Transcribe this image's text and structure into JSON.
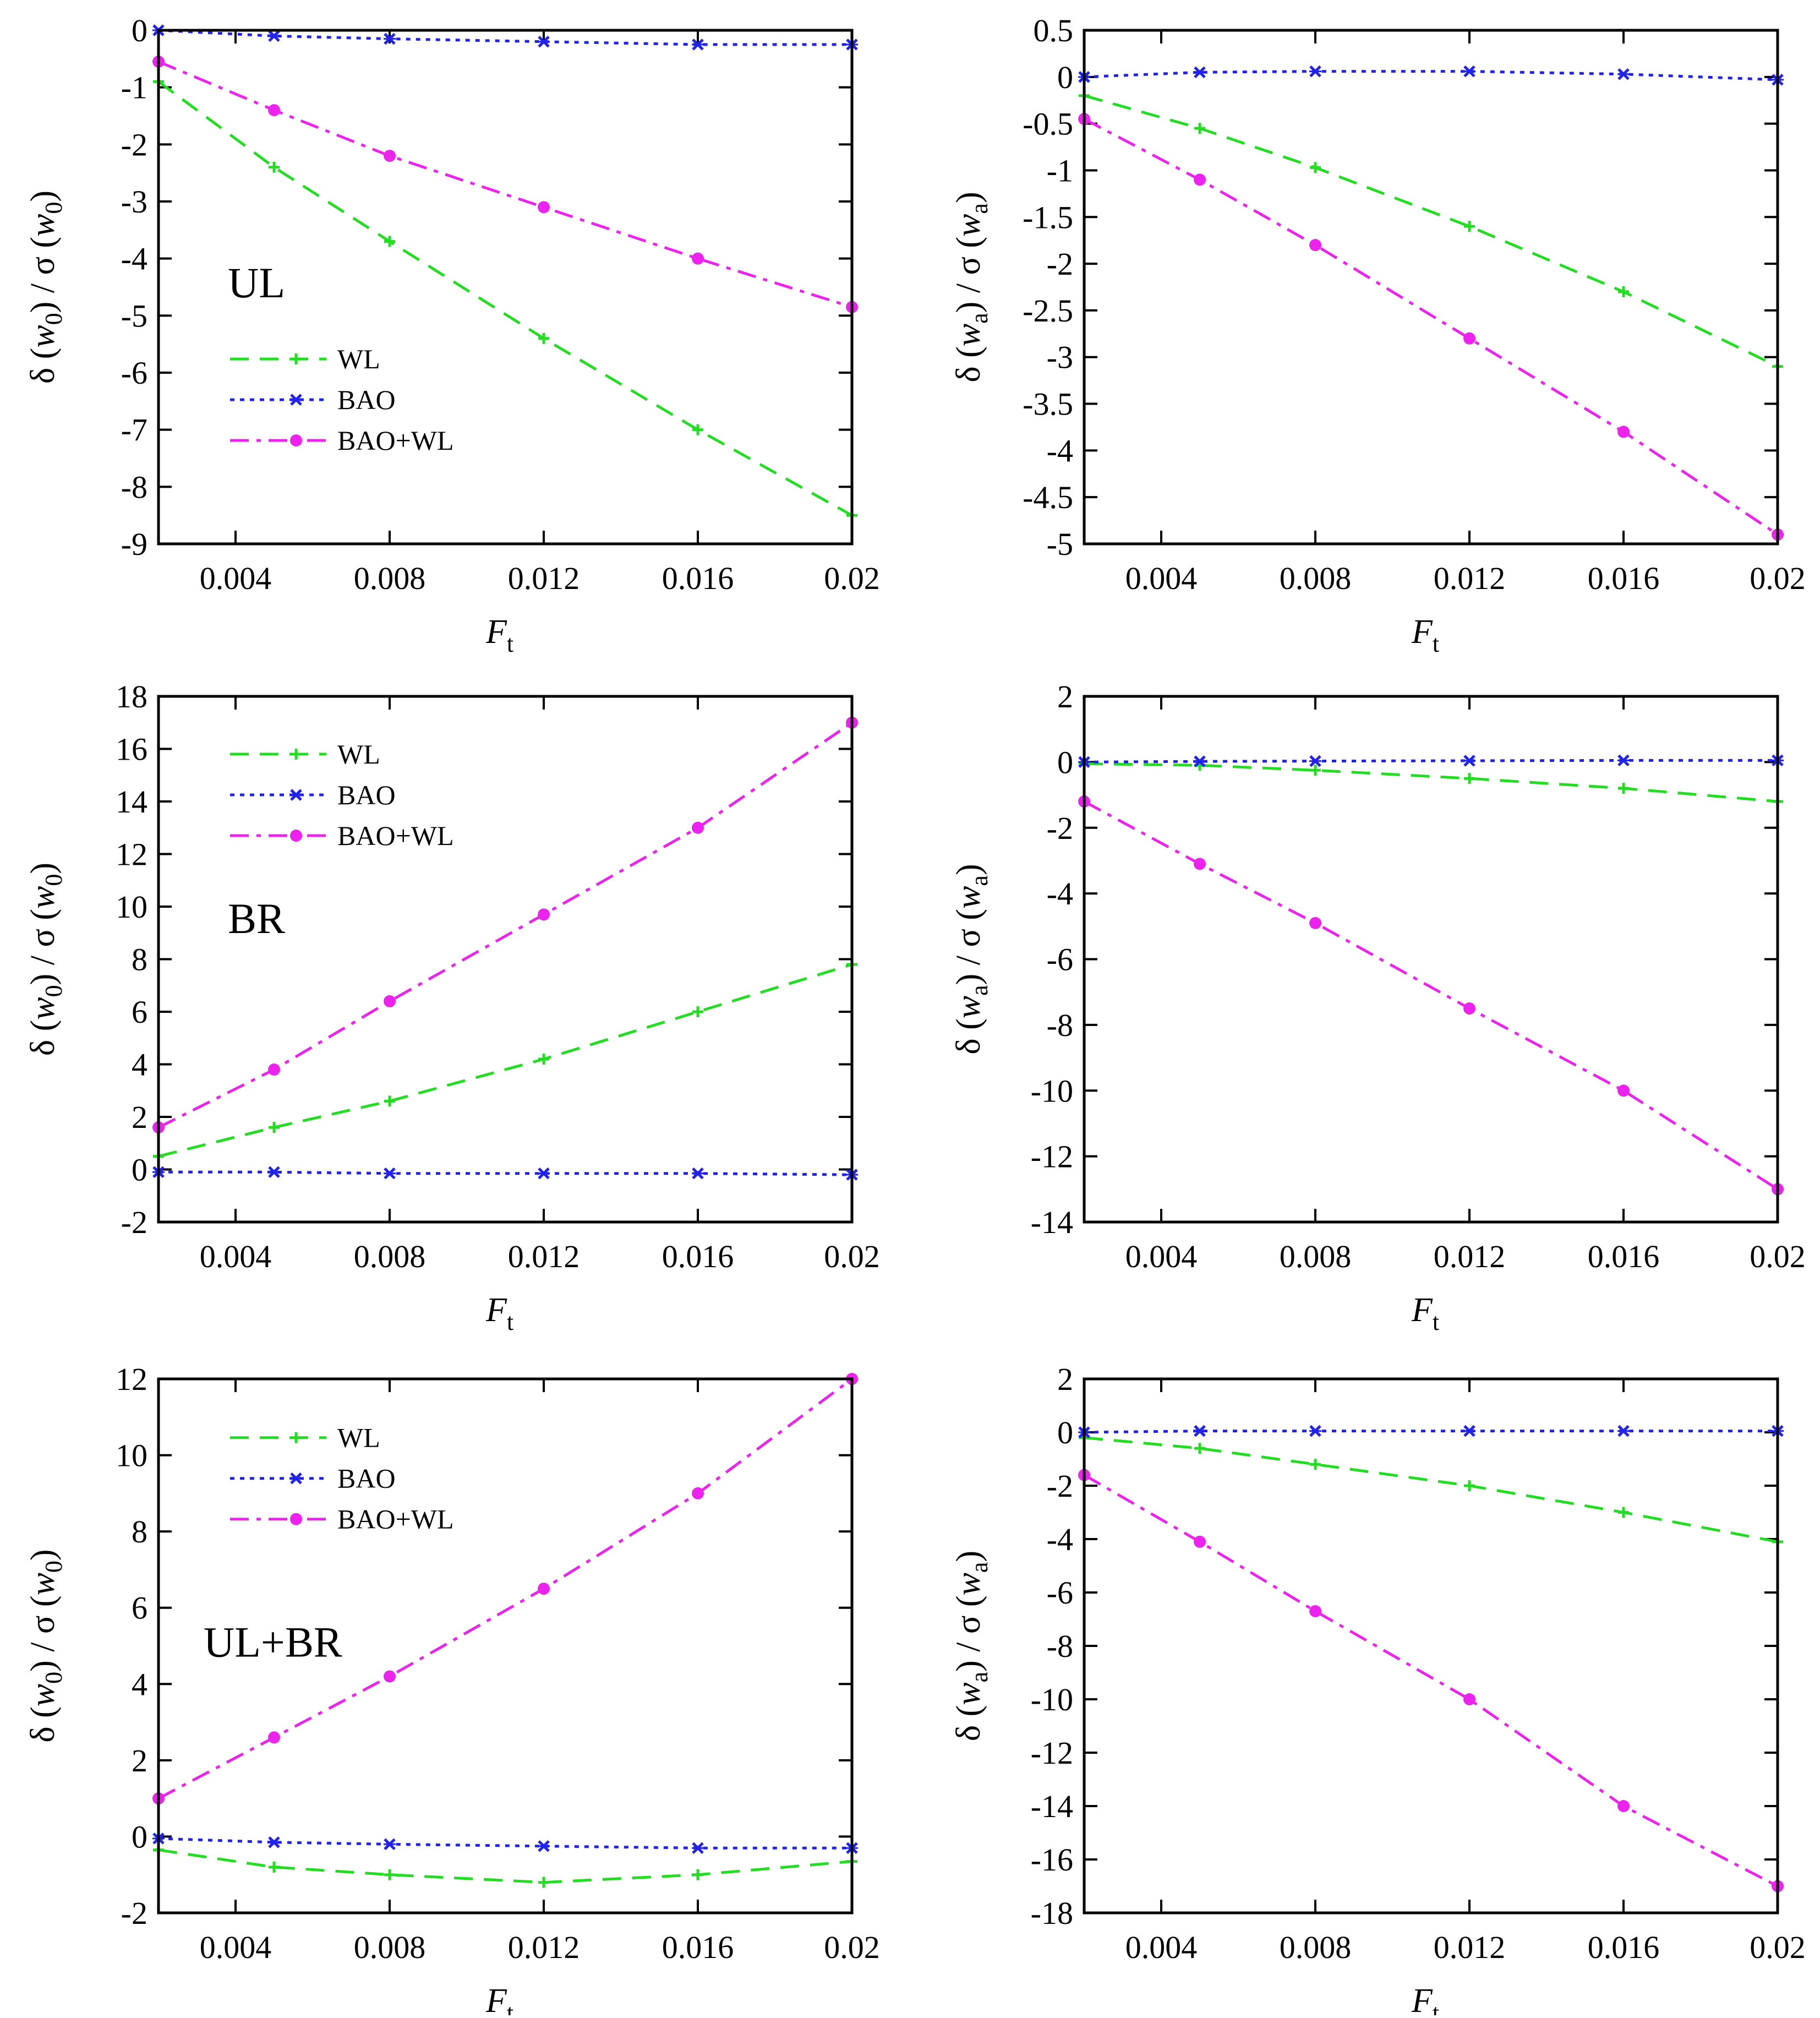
{
  "colors": {
    "WL": "#22dd22",
    "BAO": "#2222ee",
    "BAO+WL": "#ee22ee",
    "axis": "#000000"
  },
  "chart_data": [
    {
      "type": "line",
      "panel_label": "UL",
      "ylabel": "δ(w0)/σ(w0)",
      "ylabel_parts": {
        "prefix": "δ (",
        "var": "w",
        "sub": "0",
        "mid": ") / σ (",
        "var2": "w",
        "sub2": "0",
        "suffix": ")"
      },
      "xlabel": "Ft",
      "xlabel_parts": {
        "var": "F",
        "sub": "t"
      },
      "xlim": [
        0.002,
        0.02
      ],
      "ylim": [
        -9,
        0
      ],
      "xticks": [
        0.004,
        0.008,
        0.012,
        0.016,
        0.02
      ],
      "xtick_labels": [
        "0.004",
        "0.008",
        "0.012",
        "0.016",
        "0.02"
      ],
      "yticks": [
        0,
        -1,
        -2,
        -3,
        -4,
        -5,
        -6,
        -7,
        -8,
        -9
      ],
      "ytick_labels": [
        "0",
        "-1",
        "-2",
        "-3",
        "-4",
        "-5",
        "-6",
        "-7",
        "-8",
        "-9"
      ],
      "legend": {
        "show": true,
        "placement": "middle-left",
        "entries": [
          "WL",
          "BAO",
          "BAO+WL"
        ]
      },
      "x": [
        0.002,
        0.005,
        0.008,
        0.012,
        0.016,
        0.02
      ],
      "series": [
        {
          "name": "WL",
          "values": [
            -0.9,
            -2.4,
            -3.7,
            -5.4,
            -7.0,
            -8.5
          ]
        },
        {
          "name": "BAO",
          "values": [
            0.0,
            -0.1,
            -0.15,
            -0.2,
            -0.25,
            -0.25
          ]
        },
        {
          "name": "BAO+WL",
          "values": [
            -0.55,
            -1.4,
            -2.2,
            -3.1,
            -4.0,
            -4.85
          ]
        }
      ]
    },
    {
      "type": "line",
      "panel_label": "",
      "ylabel": "δ(wa)/σ(wa)",
      "ylabel_parts": {
        "prefix": "δ (",
        "var": "w",
        "sub": "a",
        "mid": ") / σ (",
        "var2": "w",
        "sub2": "a",
        "suffix": ")"
      },
      "xlabel": "Ft",
      "xlabel_parts": {
        "var": "F",
        "sub": "t"
      },
      "xlim": [
        0.002,
        0.02
      ],
      "ylim": [
        -5,
        0.5
      ],
      "xticks": [
        0.004,
        0.008,
        0.012,
        0.016,
        0.02
      ],
      "xtick_labels": [
        "0.004",
        "0.008",
        "0.012",
        "0.016",
        "0.02"
      ],
      "yticks": [
        0.5,
        0,
        -0.5,
        -1,
        -1.5,
        -2,
        -2.5,
        -3,
        -3.5,
        -4,
        -4.5,
        -5
      ],
      "ytick_labels": [
        "0.5",
        "0",
        "-0.5",
        "-1",
        "-1.5",
        "-2",
        "-2.5",
        "-3",
        "-3.5",
        "-4",
        "-4.5",
        "-5"
      ],
      "legend": {
        "show": false
      },
      "x": [
        0.002,
        0.005,
        0.008,
        0.012,
        0.016,
        0.02
      ],
      "series": [
        {
          "name": "WL",
          "values": [
            -0.2,
            -0.55,
            -0.97,
            -1.6,
            -2.3,
            -3.1
          ]
        },
        {
          "name": "BAO",
          "values": [
            0.0,
            0.05,
            0.06,
            0.06,
            0.03,
            -0.03
          ]
        },
        {
          "name": "BAO+WL",
          "values": [
            -0.45,
            -1.1,
            -1.8,
            -2.8,
            -3.8,
            -4.9
          ]
        }
      ]
    },
    {
      "type": "line",
      "panel_label": "BR",
      "ylabel": "δ(w0)/σ(w0)",
      "ylabel_parts": {
        "prefix": "δ (",
        "var": "w",
        "sub": "0",
        "mid": ") / σ (",
        "var2": "w",
        "sub2": "0",
        "suffix": ")"
      },
      "xlabel": "Ft",
      "xlabel_parts": {
        "var": "F",
        "sub": "t"
      },
      "xlim": [
        0.002,
        0.02
      ],
      "ylim": [
        -2,
        18
      ],
      "xticks": [
        0.004,
        0.008,
        0.012,
        0.016,
        0.02
      ],
      "xtick_labels": [
        "0.004",
        "0.008",
        "0.012",
        "0.016",
        "0.02"
      ],
      "yticks": [
        18,
        16,
        14,
        12,
        10,
        8,
        6,
        4,
        2,
        0,
        -2
      ],
      "ytick_labels": [
        "18",
        "16",
        "14",
        "12",
        "10",
        "8",
        "6",
        "4",
        "2",
        "0",
        "-2"
      ],
      "legend": {
        "show": true,
        "placement": "top-left",
        "entries": [
          "WL",
          "BAO",
          "BAO+WL"
        ]
      },
      "x": [
        0.002,
        0.005,
        0.008,
        0.012,
        0.016,
        0.02
      ],
      "series": [
        {
          "name": "WL",
          "values": [
            0.5,
            1.6,
            2.6,
            4.2,
            6.0,
            7.8
          ]
        },
        {
          "name": "BAO",
          "values": [
            -0.1,
            -0.1,
            -0.15,
            -0.15,
            -0.15,
            -0.2
          ]
        },
        {
          "name": "BAO+WL",
          "values": [
            1.6,
            3.8,
            6.4,
            9.7,
            13.0,
            17.0
          ]
        }
      ]
    },
    {
      "type": "line",
      "panel_label": "",
      "ylabel": "δ(wa)/σ(wa)",
      "ylabel_parts": {
        "prefix": "δ (",
        "var": "w",
        "sub": "a",
        "mid": ") / σ (",
        "var2": "w",
        "sub2": "a",
        "suffix": ")"
      },
      "xlabel": "Ft",
      "xlabel_parts": {
        "var": "F",
        "sub": "t"
      },
      "xlim": [
        0.002,
        0.02
      ],
      "ylim": [
        -14,
        2
      ],
      "xticks": [
        0.004,
        0.008,
        0.012,
        0.016,
        0.02
      ],
      "xtick_labels": [
        "0.004",
        "0.008",
        "0.012",
        "0.016",
        "0.02"
      ],
      "yticks": [
        2,
        0,
        -2,
        -4,
        -6,
        -8,
        -10,
        -12,
        -14
      ],
      "ytick_labels": [
        "2",
        "0",
        "-2",
        "-4",
        "-6",
        "-8",
        "-10",
        "-12",
        "-14"
      ],
      "legend": {
        "show": false
      },
      "x": [
        0.002,
        0.005,
        0.008,
        0.012,
        0.016,
        0.02
      ],
      "series": [
        {
          "name": "WL",
          "values": [
            -0.05,
            -0.1,
            -0.25,
            -0.5,
            -0.8,
            -1.2
          ]
        },
        {
          "name": "BAO",
          "values": [
            0.0,
            0.02,
            0.03,
            0.04,
            0.05,
            0.05
          ]
        },
        {
          "name": "BAO+WL",
          "values": [
            -1.2,
            -3.1,
            -4.9,
            -7.5,
            -10.0,
            -13.0
          ]
        }
      ]
    },
    {
      "type": "line",
      "panel_label": "UL+BR",
      "ylabel": "δ(w0)/σ(w0)",
      "ylabel_parts": {
        "prefix": "δ (",
        "var": "w",
        "sub": "0",
        "mid": ") / σ (",
        "var2": "w",
        "sub2": "0",
        "suffix": ")"
      },
      "xlabel": "Ft",
      "xlabel_parts": {
        "var": "F",
        "sub": "t"
      },
      "xlim": [
        0.002,
        0.02
      ],
      "ylim": [
        -2,
        12
      ],
      "xticks": [
        0.004,
        0.008,
        0.012,
        0.016,
        0.02
      ],
      "xtick_labels": [
        "0.004",
        "0.008",
        "0.012",
        "0.016",
        "0.02"
      ],
      "yticks": [
        12,
        10,
        8,
        6,
        4,
        2,
        0,
        -2
      ],
      "ytick_labels": [
        "12",
        "10",
        "8",
        "6",
        "4",
        "2",
        "0",
        "-2"
      ],
      "legend": {
        "show": true,
        "placement": "top-left",
        "entries": [
          "WL",
          "BAO",
          "BAO+WL"
        ]
      },
      "x": [
        0.002,
        0.005,
        0.008,
        0.012,
        0.016,
        0.02
      ],
      "series": [
        {
          "name": "WL",
          "values": [
            -0.35,
            -0.8,
            -1.0,
            -1.2,
            -1.0,
            -0.65
          ]
        },
        {
          "name": "BAO",
          "values": [
            -0.05,
            -0.15,
            -0.2,
            -0.25,
            -0.3,
            -0.3
          ]
        },
        {
          "name": "BAO+WL",
          "values": [
            1.0,
            2.6,
            4.2,
            6.5,
            9.0,
            12.0
          ]
        }
      ]
    },
    {
      "type": "line",
      "panel_label": "",
      "ylabel": "δ(wa)/σ(wa)",
      "ylabel_parts": {
        "prefix": "δ (",
        "var": "w",
        "sub": "a",
        "mid": ") / σ (",
        "var2": "w",
        "sub2": "a",
        "suffix": ")"
      },
      "xlabel": "Ft",
      "xlabel_parts": {
        "var": "F",
        "sub": "t"
      },
      "xlim": [
        0.002,
        0.02
      ],
      "ylim": [
        -18,
        2
      ],
      "xticks": [
        0.004,
        0.008,
        0.012,
        0.016,
        0.02
      ],
      "xtick_labels": [
        "0.004",
        "0.008",
        "0.012",
        "0.016",
        "0.02"
      ],
      "yticks": [
        2,
        0,
        -2,
        -4,
        -6,
        -8,
        -10,
        -12,
        -14,
        -16,
        -18
      ],
      "ytick_labels": [
        "2",
        "0",
        "-2",
        "-4",
        "-6",
        "-8",
        "-10",
        "-12",
        "-14",
        "-16",
        "-18"
      ],
      "legend": {
        "show": false
      },
      "x": [
        0.002,
        0.005,
        0.008,
        0.012,
        0.016,
        0.02
      ],
      "series": [
        {
          "name": "WL",
          "values": [
            -0.2,
            -0.6,
            -1.2,
            -2.0,
            -3.0,
            -4.1
          ]
        },
        {
          "name": "BAO",
          "values": [
            0.0,
            0.05,
            0.05,
            0.05,
            0.05,
            0.05
          ]
        },
        {
          "name": "BAO+WL",
          "values": [
            -1.6,
            -4.1,
            -6.7,
            -10.0,
            -14.0,
            -17.0
          ]
        }
      ]
    }
  ]
}
